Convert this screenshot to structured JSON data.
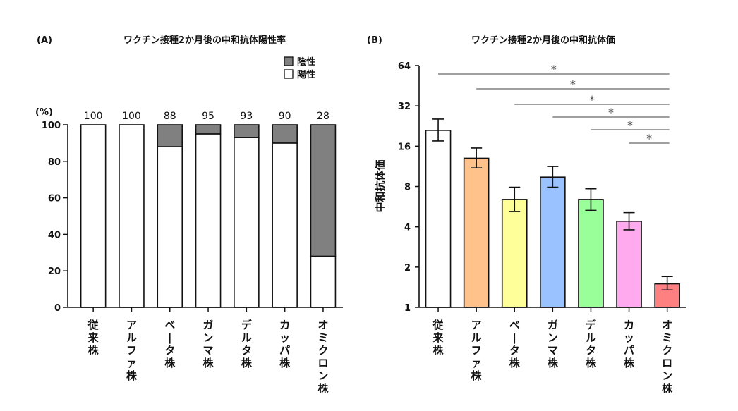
{
  "chart_data": [
    {
      "type": "bar",
      "panel_label": "(A)",
      "title": "ワクチン接種2か月後の中和抗体陽性率",
      "unit_label": "(%)",
      "categories": [
        "従来株",
        "アルファ株",
        "ベータ株",
        "ガンマ株",
        "デルタ株",
        "カッパ株",
        "オミクロン株"
      ],
      "highlight_category": "オミクロン株",
      "highlight_color": "#ff0000",
      "series": [
        {
          "name": "陽性",
          "color": "#ffffff",
          "values": [
            100,
            100,
            88,
            95,
            93,
            90,
            28
          ]
        },
        {
          "name": "陰性",
          "color": "#808080",
          "values": [
            0,
            0,
            12,
            5,
            7,
            10,
            72
          ]
        }
      ],
      "data_labels": [
        "100",
        "100",
        "88",
        "95",
        "93",
        "90",
        "28"
      ],
      "legend": [
        "陰性",
        "陽性"
      ],
      "legend_position": "top-right",
      "ylim": [
        0,
        100
      ],
      "yticks": [
        0,
        20,
        40,
        60,
        80,
        100
      ],
      "stacked": true
    },
    {
      "type": "bar",
      "panel_label": "(B)",
      "title": "ワクチン接種2か月後の中和抗体価",
      "ylabel": "中和抗体価",
      "yscale": "log2",
      "ylim": [
        1,
        64
      ],
      "yticks": [
        1,
        2,
        4,
        8,
        16,
        32,
        64
      ],
      "categories": [
        "従来株",
        "アルファ株",
        "ベータ株",
        "ガンマ株",
        "デルタ株",
        "カッパ株",
        "オミクロン株"
      ],
      "highlight_category": "オミクロン株",
      "highlight_color": "#ff0000",
      "values": [
        21,
        13,
        6.4,
        9.4,
        6.4,
        4.4,
        1.5
      ],
      "error_low": [
        17.5,
        11,
        5.2,
        7.9,
        5.3,
        3.8,
        1.35
      ],
      "error_high": [
        25.5,
        15.5,
        7.9,
        11.3,
        7.7,
        5.1,
        1.7
      ],
      "bar_colors": [
        "#ffffff",
        "#ffc28a",
        "#ffff99",
        "#99c2ff",
        "#99ff99",
        "#ffaaee",
        "#ff8080"
      ],
      "significance": [
        {
          "from": 0,
          "to": 6,
          "label": "*"
        },
        {
          "from": 1,
          "to": 6,
          "label": "*"
        },
        {
          "from": 2,
          "to": 6,
          "label": "*"
        },
        {
          "from": 3,
          "to": 6,
          "label": "*"
        },
        {
          "from": 4,
          "to": 6,
          "label": "*"
        },
        {
          "from": 5,
          "to": 6,
          "label": "*"
        }
      ]
    }
  ]
}
